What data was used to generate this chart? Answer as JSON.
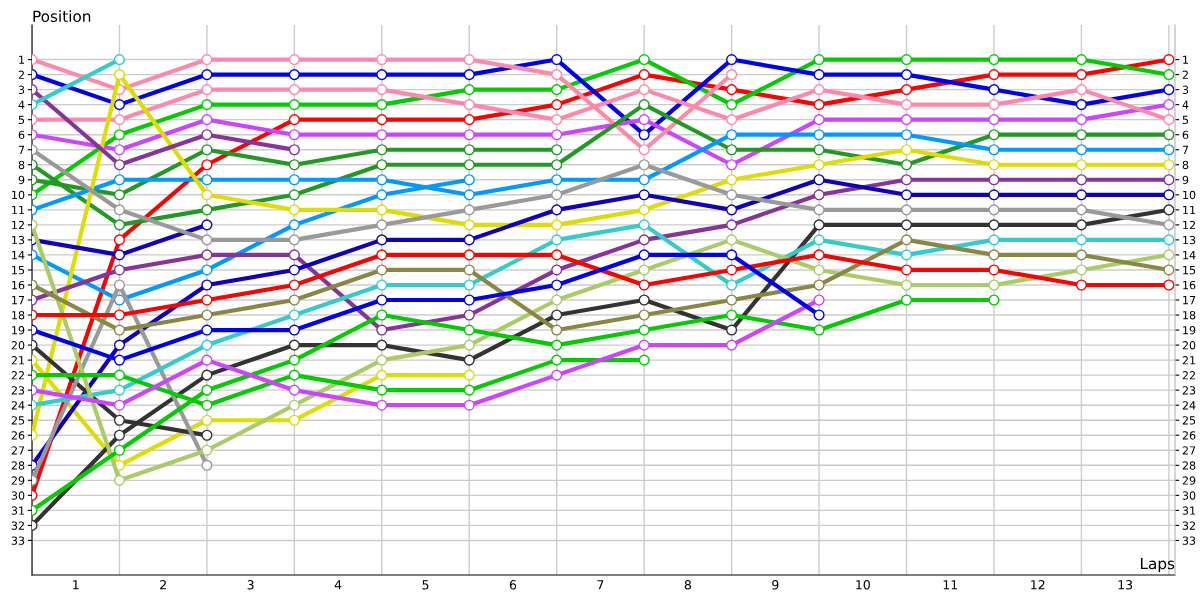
{
  "chart_data": {
    "type": "line",
    "xlabel": "Laps",
    "ylabel": "Position",
    "x": [
      0,
      1,
      2,
      3,
      4,
      5,
      6,
      7,
      8,
      9,
      10,
      11,
      12,
      13
    ],
    "xlim": [
      0,
      13.07
    ],
    "ylim": [
      35.3,
      -1.3
    ],
    "xticks": [
      {
        "value": 0,
        "label": null
      },
      {
        "value": 1,
        "label": null
      },
      {
        "value": 2,
        "label": null
      },
      {
        "value": 3,
        "label": null
      },
      {
        "value": 4,
        "label": null
      },
      {
        "value": 5,
        "label": null
      },
      {
        "value": 6,
        "label": null
      },
      {
        "value": 7,
        "label": null
      },
      {
        "value": 8,
        "label": null
      },
      {
        "value": 9,
        "label": null
      },
      {
        "value": 10,
        "label": null
      },
      {
        "value": 11,
        "label": null
      },
      {
        "value": 12,
        "label": null
      },
      {
        "value": 13,
        "label": null
      },
      {
        "value": 0.5,
        "label": "1"
      },
      {
        "value": 1.5,
        "label": "2"
      },
      {
        "value": 2.5,
        "label": "3"
      },
      {
        "value": 3.5,
        "label": "4"
      },
      {
        "value": 4.5,
        "label": "5"
      },
      {
        "value": 5.5,
        "label": "6"
      },
      {
        "value": 6.5,
        "label": "7"
      },
      {
        "value": 7.5,
        "label": "8"
      },
      {
        "value": 8.5,
        "label": "9"
      },
      {
        "value": 9.5,
        "label": "10"
      },
      {
        "value": 10.5,
        "label": "11"
      },
      {
        "value": 11.5,
        "label": "12"
      },
      {
        "value": 12.5,
        "label": "13"
      }
    ],
    "yticks": [
      1,
      2,
      3,
      4,
      5,
      6,
      7,
      8,
      9,
      10,
      11,
      12,
      13,
      14,
      15,
      16,
      17,
      18,
      19,
      20,
      21,
      22,
      23,
      24,
      25,
      26,
      27,
      28,
      29,
      30,
      31,
      32,
      33
    ],
    "y2lim": [
      35.3,
      -1.3
    ],
    "y2ticks": [
      1,
      2,
      3,
      4,
      5,
      6,
      7,
      8,
      9,
      10,
      11,
      12,
      13,
      14,
      15,
      16,
      17,
      18,
      19,
      20,
      21,
      22,
      23,
      24,
      25,
      26,
      27,
      28,
      29,
      30,
      31,
      32,
      33
    ],
    "grid": true,
    "legend": false,
    "marker": "circle",
    "line_style": "solid",
    "series": [
      {
        "color": "#ff0000",
        "values": [
          30,
          13,
          8,
          5,
          5,
          5,
          4,
          2,
          3,
          4,
          3,
          2,
          2,
          1
        ]
      },
      {
        "color": "#00cc00",
        "values": [
          10,
          6,
          4,
          4,
          4,
          3,
          3,
          1,
          4,
          1,
          1,
          1,
          1,
          2
        ]
      },
      {
        "color": "#0000ee",
        "values": [
          2,
          4,
          2,
          2,
          2,
          2,
          1,
          6,
          1,
          2,
          2,
          3,
          4,
          3
        ]
      },
      {
        "color": "#cc44ff",
        "values": [
          6,
          7,
          5,
          6,
          6,
          6,
          6,
          5,
          8,
          5,
          5,
          5,
          5,
          4
        ]
      },
      {
        "color": "#ff88aa",
        "values": [
          1,
          3,
          1,
          1,
          1,
          1,
          2,
          7,
          2,
          null,
          null,
          null,
          null,
          null
        ]
      },
      {
        "color": "#ff88aa",
        "values": [
          5,
          5,
          3,
          3,
          3,
          4,
          5,
          3,
          5,
          3,
          4,
          4,
          3,
          5
        ]
      },
      {
        "color": "#229922",
        "values": [
          8,
          12,
          11,
          10,
          8,
          8,
          8,
          4,
          7,
          7,
          8,
          6,
          6,
          6
        ]
      },
      {
        "color": "#229922",
        "values": [
          9,
          10,
          7,
          8,
          7,
          7,
          7,
          null,
          null,
          null,
          null,
          null,
          null,
          null
        ]
      },
      {
        "color": "#0099ff",
        "values": [
          11,
          9,
          9,
          9,
          9,
          10,
          9,
          9,
          6,
          6,
          6,
          7,
          7,
          7
        ]
      },
      {
        "color": "#0099ff",
        "values": [
          14,
          17,
          15,
          12,
          10,
          9,
          null,
          null,
          null,
          null,
          null,
          null,
          null,
          null
        ]
      },
      {
        "color": "#dddd00",
        "values": [
          26,
          2,
          10,
          11,
          11,
          12,
          12,
          11,
          9,
          8,
          7,
          8,
          8,
          8
        ]
      },
      {
        "color": "#dddd00",
        "values": [
          21,
          28,
          25,
          25,
          22,
          22,
          null,
          null,
          null,
          null,
          null,
          null,
          null,
          null
        ]
      },
      {
        "color": "#883399",
        "values": [
          3,
          8,
          6,
          7,
          null,
          null,
          null,
          null,
          null,
          null,
          null,
          null,
          null,
          null
        ]
      },
      {
        "color": "#883399",
        "values": [
          17,
          15,
          14,
          14,
          19,
          18,
          15,
          13,
          12,
          10,
          9,
          9,
          9,
          9
        ]
      },
      {
        "color": "#1100bb",
        "values": [
          28,
          20,
          16,
          15,
          13,
          13,
          11,
          10,
          11,
          9,
          10,
          10,
          10,
          10
        ]
      },
      {
        "color": "#1100bb",
        "values": [
          13,
          14,
          12,
          null,
          null,
          null,
          null,
          null,
          null,
          null,
          null,
          null,
          null,
          null
        ]
      },
      {
        "color": "#333333",
        "values": [
          32,
          26,
          22,
          20,
          20,
          21,
          18,
          17,
          19,
          12,
          12,
          12,
          12,
          11
        ]
      },
      {
        "color": "#333333",
        "values": [
          20,
          25,
          26,
          null,
          null,
          null,
          null,
          null,
          null,
          null,
          null,
          null,
          null,
          null
        ]
      },
      {
        "color": "#999999",
        "values": [
          7,
          11,
          13,
          13,
          12,
          11,
          10,
          8,
          10,
          11,
          11,
          11,
          11,
          12
        ]
      },
      {
        "color": "#999999",
        "values": [
          29,
          16,
          28,
          null,
          null,
          null,
          null,
          null,
          null,
          null,
          null,
          null,
          null,
          null
        ]
      },
      {
        "color": "#33cccc",
        "values": [
          24,
          23,
          20,
          18,
          16,
          16,
          13,
          12,
          16,
          13,
          14,
          13,
          13,
          13
        ]
      },
      {
        "color": "#33cccc",
        "values": [
          4,
          1,
          null,
          null,
          null,
          null,
          null,
          null,
          null,
          null,
          null,
          null,
          null,
          null
        ]
      },
      {
        "color": "#aacc66",
        "values": [
          12,
          29,
          27,
          24,
          21,
          20,
          17,
          15,
          13,
          15,
          16,
          16,
          15,
          14
        ]
      },
      {
        "color": "#888844",
        "values": [
          16,
          19,
          18,
          17,
          15,
          15,
          19,
          18,
          17,
          16,
          13,
          14,
          14,
          15
        ]
      },
      {
        "color": "#ff0000",
        "values": [
          18,
          18,
          17,
          16,
          14,
          14,
          14,
          16,
          15,
          14,
          15,
          15,
          16,
          16
        ]
      },
      {
        "color": "#00cc00",
        "values": [
          31,
          27,
          23,
          21,
          18,
          19,
          20,
          19,
          18,
          19,
          17,
          17,
          null,
          null
        ]
      },
      {
        "color": "#00cc00",
        "values": [
          22,
          22,
          24,
          22,
          23,
          23,
          21,
          21,
          null,
          null,
          null,
          null,
          null,
          null
        ]
      },
      {
        "color": "#cc44ff",
        "values": [
          23,
          24,
          21,
          23,
          24,
          24,
          22,
          20,
          20,
          17,
          null,
          null,
          null,
          null
        ]
      },
      {
        "color": "#0000ee",
        "values": [
          19,
          21,
          19,
          19,
          17,
          17,
          16,
          14,
          14,
          18,
          null,
          null,
          null,
          null
        ]
      }
    ]
  }
}
